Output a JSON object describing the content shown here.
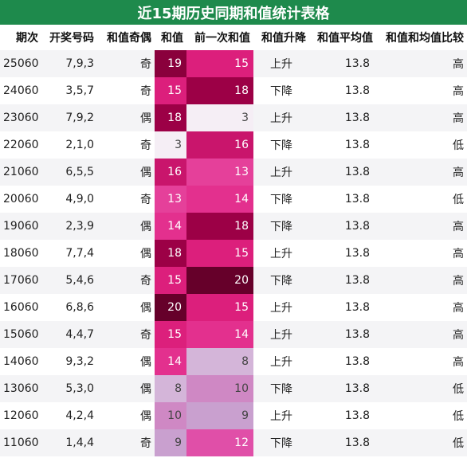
{
  "title": "近15期历史同期和值统计表格",
  "columns": [
    "期次",
    "开奖号码",
    "和值奇偶",
    "和值",
    "前一次和值",
    "和值升降",
    "和值平均值",
    "和值和均值比较"
  ],
  "rows": [
    {
      "period": "25060",
      "numbers": "7,9,3",
      "parity": "奇",
      "sum": "19",
      "prev_sum": "15",
      "trend": "上升",
      "avg": "13.8",
      "compare": "高"
    },
    {
      "period": "24060",
      "numbers": "3,5,7",
      "parity": "奇",
      "sum": "15",
      "prev_sum": "18",
      "trend": "下降",
      "avg": "13.8",
      "compare": "高"
    },
    {
      "period": "23060",
      "numbers": "7,9,2",
      "parity": "偶",
      "sum": "18",
      "prev_sum": "3",
      "trend": "上升",
      "avg": "13.8",
      "compare": "高"
    },
    {
      "period": "22060",
      "numbers": "2,1,0",
      "parity": "奇",
      "sum": "3",
      "prev_sum": "16",
      "trend": "下降",
      "avg": "13.8",
      "compare": "低"
    },
    {
      "period": "21060",
      "numbers": "6,5,5",
      "parity": "偶",
      "sum": "16",
      "prev_sum": "13",
      "trend": "上升",
      "avg": "13.8",
      "compare": "高"
    },
    {
      "period": "20060",
      "numbers": "4,9,0",
      "parity": "奇",
      "sum": "13",
      "prev_sum": "14",
      "trend": "下降",
      "avg": "13.8",
      "compare": "低"
    },
    {
      "period": "19060",
      "numbers": "2,3,9",
      "parity": "偶",
      "sum": "14",
      "prev_sum": "18",
      "trend": "下降",
      "avg": "13.8",
      "compare": "高"
    },
    {
      "period": "18060",
      "numbers": "7,7,4",
      "parity": "偶",
      "sum": "18",
      "prev_sum": "15",
      "trend": "上升",
      "avg": "13.8",
      "compare": "高"
    },
    {
      "period": "17060",
      "numbers": "5,4,6",
      "parity": "奇",
      "sum": "15",
      "prev_sum": "20",
      "trend": "下降",
      "avg": "13.8",
      "compare": "高"
    },
    {
      "period": "16060",
      "numbers": "6,8,6",
      "parity": "偶",
      "sum": "20",
      "prev_sum": "15",
      "trend": "上升",
      "avg": "13.8",
      "compare": "高"
    },
    {
      "period": "15060",
      "numbers": "4,4,7",
      "parity": "奇",
      "sum": "15",
      "prev_sum": "14",
      "trend": "上升",
      "avg": "13.8",
      "compare": "高"
    },
    {
      "period": "14060",
      "numbers": "9,3,2",
      "parity": "偶",
      "sum": "14",
      "prev_sum": "8",
      "trend": "上升",
      "avg": "13.8",
      "compare": "高"
    },
    {
      "period": "13060",
      "numbers": "5,3,0",
      "parity": "偶",
      "sum": "8",
      "prev_sum": "10",
      "trend": "下降",
      "avg": "13.8",
      "compare": "低"
    },
    {
      "period": "12060",
      "numbers": "4,2,4",
      "parity": "偶",
      "sum": "10",
      "prev_sum": "9",
      "trend": "上升",
      "avg": "13.8",
      "compare": "低"
    },
    {
      "period": "11060",
      "numbers": "1,4,4",
      "parity": "奇",
      "sum": "9",
      "prev_sum": "12",
      "trend": "下降",
      "avg": "13.8",
      "compare": "低"
    }
  ],
  "colors": {
    "title_background": "#1e8a4c",
    "title_text": "#ffffff",
    "heat_scale": {
      "3": "#f5eef5",
      "8": "#d4b5d9",
      "9": "#c9a0cf",
      "10": "#cf88c4",
      "12": "#e04fa8",
      "13": "#e5409a",
      "14": "#e3308e",
      "15": "#dc1f7c",
      "16": "#c9156c",
      "18": "#9c0046",
      "19": "#8a003c",
      "20": "#66002a"
    }
  }
}
